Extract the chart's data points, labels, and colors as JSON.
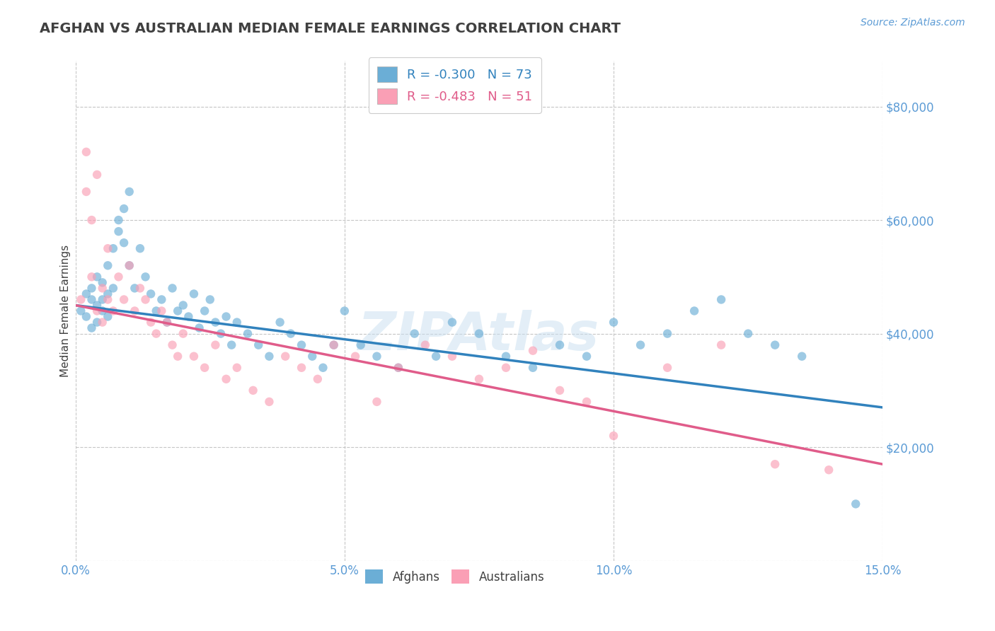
{
  "title": "AFGHAN VS AUSTRALIAN MEDIAN FEMALE EARNINGS CORRELATION CHART",
  "source": "Source: ZipAtlas.com",
  "xlabel": "",
  "ylabel": "Median Female Earnings",
  "xlim": [
    0.0,
    0.15
  ],
  "ylim": [
    0,
    88000
  ],
  "yticks": [
    0,
    20000,
    40000,
    60000,
    80000
  ],
  "ytick_labels": [
    "",
    "$20,000",
    "$40,000",
    "$60,000",
    "$80,000"
  ],
  "xtick_labels": [
    "0.0%",
    "5.0%",
    "10.0%",
    "15.0%"
  ],
  "xtick_vals": [
    0.0,
    0.05,
    0.1,
    0.15
  ],
  "blue_color": "#6baed6",
  "pink_color": "#fa9fb5",
  "blue_line_color": "#3182bd",
  "pink_line_color": "#e05c8a",
  "blue_R": -0.3,
  "blue_N": 73,
  "pink_R": -0.483,
  "pink_N": 51,
  "watermark": "ZIPAtlas",
  "background_color": "#ffffff",
  "grid_color": "#c0c0c0",
  "tick_color": "#5b9bd5",
  "title_color": "#404040",
  "source_color": "#5b9bd5",
  "ylabel_color": "#404040",
  "blue_scatter_x": [
    0.001,
    0.002,
    0.002,
    0.003,
    0.003,
    0.003,
    0.004,
    0.004,
    0.004,
    0.005,
    0.005,
    0.005,
    0.006,
    0.006,
    0.006,
    0.007,
    0.007,
    0.008,
    0.008,
    0.009,
    0.009,
    0.01,
    0.01,
    0.011,
    0.012,
    0.013,
    0.014,
    0.015,
    0.016,
    0.017,
    0.018,
    0.019,
    0.02,
    0.021,
    0.022,
    0.023,
    0.024,
    0.025,
    0.026,
    0.027,
    0.028,
    0.029,
    0.03,
    0.032,
    0.034,
    0.036,
    0.038,
    0.04,
    0.042,
    0.044,
    0.046,
    0.048,
    0.05,
    0.053,
    0.056,
    0.06,
    0.063,
    0.067,
    0.07,
    0.075,
    0.08,
    0.085,
    0.09,
    0.095,
    0.1,
    0.105,
    0.11,
    0.115,
    0.12,
    0.125,
    0.13,
    0.135,
    0.145
  ],
  "blue_scatter_y": [
    44000,
    47000,
    43000,
    46000,
    48000,
    41000,
    45000,
    50000,
    42000,
    49000,
    44000,
    46000,
    52000,
    47000,
    43000,
    55000,
    48000,
    60000,
    58000,
    62000,
    56000,
    65000,
    52000,
    48000,
    55000,
    50000,
    47000,
    44000,
    46000,
    42000,
    48000,
    44000,
    45000,
    43000,
    47000,
    41000,
    44000,
    46000,
    42000,
    40000,
    43000,
    38000,
    42000,
    40000,
    38000,
    36000,
    42000,
    40000,
    38000,
    36000,
    34000,
    38000,
    44000,
    38000,
    36000,
    34000,
    40000,
    36000,
    42000,
    40000,
    36000,
    34000,
    38000,
    36000,
    42000,
    38000,
    40000,
    44000,
    46000,
    40000,
    38000,
    36000,
    10000
  ],
  "pink_scatter_x": [
    0.001,
    0.002,
    0.002,
    0.003,
    0.003,
    0.004,
    0.004,
    0.005,
    0.005,
    0.006,
    0.006,
    0.007,
    0.008,
    0.009,
    0.01,
    0.011,
    0.012,
    0.013,
    0.014,
    0.015,
    0.016,
    0.017,
    0.018,
    0.019,
    0.02,
    0.022,
    0.024,
    0.026,
    0.028,
    0.03,
    0.033,
    0.036,
    0.039,
    0.042,
    0.045,
    0.048,
    0.052,
    0.056,
    0.06,
    0.065,
    0.07,
    0.075,
    0.08,
    0.085,
    0.09,
    0.095,
    0.1,
    0.11,
    0.12,
    0.13,
    0.14
  ],
  "pink_scatter_y": [
    46000,
    72000,
    65000,
    60000,
    50000,
    68000,
    44000,
    48000,
    42000,
    55000,
    46000,
    44000,
    50000,
    46000,
    52000,
    44000,
    48000,
    46000,
    42000,
    40000,
    44000,
    42000,
    38000,
    36000,
    40000,
    36000,
    34000,
    38000,
    32000,
    34000,
    30000,
    28000,
    36000,
    34000,
    32000,
    38000,
    36000,
    28000,
    34000,
    38000,
    36000,
    32000,
    34000,
    37000,
    30000,
    28000,
    22000,
    34000,
    38000,
    17000,
    16000
  ],
  "blue_line_y0": 45000,
  "blue_line_y1": 27000,
  "pink_line_y0": 45000,
  "pink_line_y1": 17000
}
